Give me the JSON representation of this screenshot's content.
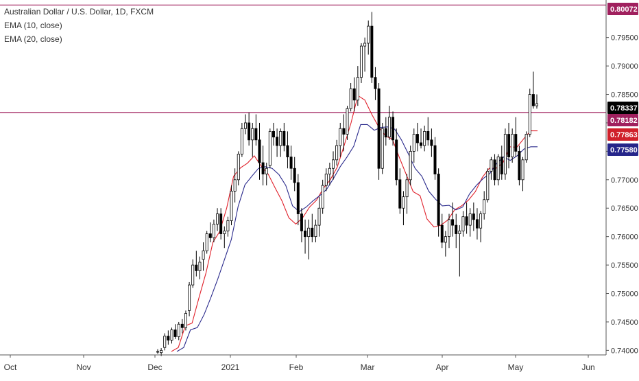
{
  "legend": {
    "title": "Australian Dollar / U.S. Dollar, 1D, FXCM",
    "ema10_label": "EMA (10, close)",
    "ema20_label": "EMA (20, close)"
  },
  "colors": {
    "background": "#ffffff",
    "candle": "#000000",
    "ema10": "#e0202a",
    "ema20": "#2a2a8c",
    "hline": "#a0205e",
    "axis": "#555555"
  },
  "price_labels": [
    {
      "text": "0.80072",
      "bg": "#a0205e",
      "fg": "#ffffff"
    },
    {
      "text": "0.78337",
      "bg": "#000000",
      "fg": "#ffffff"
    },
    {
      "text": "0.78182",
      "bg": "#a0205e",
      "fg": "#ffffff"
    },
    {
      "text": "0.77863",
      "bg": "#d0202a",
      "fg": "#ffffff"
    },
    {
      "text": "0.77580",
      "bg": "#25258a",
      "fg": "#ffffff"
    }
  ],
  "chart_data": {
    "type": "candlestick",
    "symbol": "Australian Dollar / U.S. Dollar, 1D, FXCM",
    "ylim": [
      0.7392,
      0.8016
    ],
    "y_ticks": [
      "0.74000",
      "0.74500",
      "0.75000",
      "0.75500",
      "0.76000",
      "0.76500",
      "0.77000",
      "0.77500",
      "0.78000",
      "0.78500",
      "0.79000",
      "0.79500"
    ],
    "x_ticks": [
      "Oct",
      "Nov",
      "Dec",
      "2021",
      "Feb",
      "Mar",
      "Apr",
      "May",
      "Jun"
    ],
    "hlines": [
      0.80072,
      0.78182
    ],
    "series": [
      {
        "name": "EMA (10, close)",
        "values": [
          [
            0.7398,
            0.7405
          ],
          [
            0.7443,
            0.7448
          ],
          [
            0.7493,
            0.7536
          ],
          [
            0.759,
            0.7609
          ],
          [
            0.765,
            0.7706
          ],
          [
            0.7721,
            0.7729
          ],
          [
            0.7742,
            0.7724
          ],
          [
            0.771,
            0.7686
          ],
          [
            0.7663,
            0.7633
          ],
          [
            0.7622,
            0.7633
          ],
          [
            0.7652,
            0.7664
          ],
          [
            0.7685,
            0.77
          ],
          [
            0.7722,
            0.776
          ],
          [
            0.78,
            0.7848
          ],
          [
            0.784,
            0.7815
          ],
          [
            0.7793,
            0.7777
          ],
          [
            0.7771,
            0.7739
          ],
          [
            0.7709,
            0.7679
          ],
          [
            0.7672,
            0.7631
          ],
          [
            0.7617,
            0.762
          ],
          [
            0.7629,
            0.7647
          ],
          [
            0.7654,
            0.7664
          ],
          [
            0.7679,
            0.7704
          ],
          [
            0.772,
            0.772
          ],
          [
            0.773,
            0.7758
          ],
          [
            0.7757,
            0.7772
          ],
          [
            0.7786,
            0.7786
          ]
        ]
      },
      {
        "name": "EMA (20, close)",
        "values": [
          [
            0.7398,
            0.7405
          ],
          [
            0.7436,
            0.744
          ],
          [
            0.7463,
            0.7493
          ],
          [
            0.7525,
            0.756
          ],
          [
            0.7595,
            0.7653
          ],
          [
            0.7691,
            0.7706
          ],
          [
            0.772,
            0.7723
          ],
          [
            0.772,
            0.7709
          ],
          [
            0.769,
            0.7654
          ],
          [
            0.7644,
            0.7652
          ],
          [
            0.7663,
            0.7672
          ],
          [
            0.7683,
            0.7702
          ],
          [
            0.7723,
            0.774
          ],
          [
            0.7759,
            0.7797
          ],
          [
            0.7797,
            0.7787
          ],
          [
            0.7792,
            0.7793
          ],
          [
            0.7789,
            0.777
          ],
          [
            0.7746,
            0.772
          ],
          [
            0.7706,
            0.768
          ],
          [
            0.7666,
            0.7654
          ],
          [
            0.7655,
            0.7647
          ],
          [
            0.7652,
            0.7675
          ],
          [
            0.769,
            0.7702
          ],
          [
            0.7711,
            0.7729
          ],
          [
            0.774,
            0.7734
          ],
          [
            0.7742,
            0.7754
          ],
          [
            0.7758,
            0.7758
          ]
        ]
      }
    ],
    "candles": [
      [
        0.7398,
        0.7402,
        0.7394,
        0.7398
      ],
      [
        0.7396,
        0.7404,
        0.739,
        0.74
      ],
      [
        0.7405,
        0.743,
        0.74,
        0.7425
      ],
      [
        0.7425,
        0.7435,
        0.741,
        0.7418
      ],
      [
        0.7418,
        0.744,
        0.7412,
        0.7436
      ],
      [
        0.7436,
        0.7446,
        0.742,
        0.7424
      ],
      [
        0.7424,
        0.745,
        0.7418,
        0.7446
      ],
      [
        0.7446,
        0.7455,
        0.743,
        0.744
      ],
      [
        0.744,
        0.747,
        0.7435,
        0.7465
      ],
      [
        0.747,
        0.752,
        0.746,
        0.7515
      ],
      [
        0.7515,
        0.756,
        0.751,
        0.755
      ],
      [
        0.755,
        0.7575,
        0.753,
        0.754
      ],
      [
        0.754,
        0.7565,
        0.7525,
        0.7555
      ],
      [
        0.756,
        0.759,
        0.754,
        0.7575
      ],
      [
        0.7575,
        0.761,
        0.757,
        0.7605
      ],
      [
        0.7605,
        0.7625,
        0.759,
        0.7598
      ],
      [
        0.7598,
        0.763,
        0.759,
        0.7622
      ],
      [
        0.7622,
        0.765,
        0.761,
        0.764
      ],
      [
        0.764,
        0.765,
        0.7595,
        0.7605
      ],
      [
        0.7605,
        0.7618,
        0.758,
        0.761
      ],
      [
        0.761,
        0.7635,
        0.76,
        0.7628
      ],
      [
        0.7628,
        0.769,
        0.762,
        0.768
      ],
      [
        0.768,
        0.772,
        0.766,
        0.77
      ],
      [
        0.77,
        0.775,
        0.769,
        0.7745
      ],
      [
        0.7745,
        0.78,
        0.774,
        0.779
      ],
      [
        0.779,
        0.7815,
        0.778,
        0.78
      ],
      [
        0.78,
        0.7818,
        0.776,
        0.777
      ],
      [
        0.777,
        0.78,
        0.774,
        0.779
      ],
      [
        0.779,
        0.7815,
        0.776,
        0.777
      ],
      [
        0.777,
        0.78,
        0.77,
        0.773
      ],
      [
        0.773,
        0.776,
        0.769,
        0.771
      ],
      [
        0.771,
        0.773,
        0.769,
        0.772
      ],
      [
        0.7725,
        0.779,
        0.772,
        0.7785
      ],
      [
        0.7785,
        0.78,
        0.776,
        0.7775
      ],
      [
        0.7775,
        0.779,
        0.774,
        0.776
      ],
      [
        0.776,
        0.779,
        0.774,
        0.7785
      ],
      [
        0.7785,
        0.78,
        0.775,
        0.776
      ],
      [
        0.776,
        0.7785,
        0.772,
        0.774
      ],
      [
        0.774,
        0.776,
        0.77,
        0.772
      ],
      [
        0.772,
        0.774,
        0.768,
        0.7695
      ],
      [
        0.7695,
        0.771,
        0.762,
        0.764
      ],
      [
        0.764,
        0.765,
        0.759,
        0.761
      ],
      [
        0.761,
        0.763,
        0.757,
        0.76
      ],
      [
        0.76,
        0.763,
        0.756,
        0.7615
      ],
      [
        0.7615,
        0.764,
        0.759,
        0.76
      ],
      [
        0.76,
        0.763,
        0.759,
        0.762
      ],
      [
        0.762,
        0.767,
        0.76,
        0.765
      ],
      [
        0.765,
        0.77,
        0.764,
        0.769
      ],
      [
        0.769,
        0.772,
        0.768,
        0.771
      ],
      [
        0.771,
        0.773,
        0.769,
        0.772
      ],
      [
        0.772,
        0.775,
        0.77,
        0.7735
      ],
      [
        0.7735,
        0.777,
        0.7725,
        0.776
      ],
      [
        0.776,
        0.78,
        0.774,
        0.779
      ],
      [
        0.779,
        0.7815,
        0.775,
        0.778
      ],
      [
        0.778,
        0.783,
        0.777,
        0.7825
      ],
      [
        0.7825,
        0.787,
        0.782,
        0.786
      ],
      [
        0.786,
        0.788,
        0.782,
        0.784
      ],
      [
        0.784,
        0.79,
        0.783,
        0.788
      ],
      [
        0.788,
        0.794,
        0.787,
        0.7935
      ],
      [
        0.7935,
        0.795,
        0.789,
        0.794
      ],
      [
        0.794,
        0.798,
        0.792,
        0.797
      ],
      [
        0.797,
        0.7995,
        0.787,
        0.788
      ],
      [
        0.788,
        0.7898,
        0.784,
        0.786
      ],
      [
        0.786,
        0.787,
        0.77,
        0.772
      ],
      [
        0.772,
        0.78,
        0.771,
        0.779
      ],
      [
        0.779,
        0.781,
        0.776,
        0.7775
      ],
      [
        0.7775,
        0.783,
        0.777,
        0.781
      ],
      [
        0.781,
        0.782,
        0.776,
        0.777
      ],
      [
        0.777,
        0.779,
        0.769,
        0.77
      ],
      [
        0.77,
        0.772,
        0.764,
        0.765
      ],
      [
        0.765,
        0.768,
        0.762,
        0.767
      ],
      [
        0.767,
        0.771,
        0.764,
        0.77
      ],
      [
        0.77,
        0.776,
        0.769,
        0.775
      ],
      [
        0.775,
        0.779,
        0.773,
        0.778
      ],
      [
        0.778,
        0.78,
        0.775,
        0.7765
      ],
      [
        0.7765,
        0.779,
        0.7755,
        0.776
      ],
      [
        0.776,
        0.7795,
        0.775,
        0.7785
      ],
      [
        0.7785,
        0.781,
        0.776,
        0.777
      ],
      [
        0.777,
        0.779,
        0.774,
        0.776
      ],
      [
        0.776,
        0.7775,
        0.77,
        0.771
      ],
      [
        0.771,
        0.772,
        0.76,
        0.762
      ],
      [
        0.762,
        0.764,
        0.758,
        0.759
      ],
      [
        0.759,
        0.761,
        0.7565,
        0.76
      ],
      [
        0.76,
        0.764,
        0.758,
        0.763
      ],
      [
        0.763,
        0.766,
        0.76,
        0.762
      ],
      [
        0.762,
        0.764,
        0.758,
        0.7605
      ],
      [
        0.7605,
        0.762,
        0.753,
        0.761
      ],
      [
        0.761,
        0.7645,
        0.76,
        0.7635
      ],
      [
        0.7635,
        0.766,
        0.7605,
        0.762
      ],
      [
        0.762,
        0.765,
        0.76,
        0.764
      ],
      [
        0.764,
        0.766,
        0.761,
        0.763
      ],
      [
        0.763,
        0.765,
        0.7595,
        0.7615
      ],
      [
        0.7615,
        0.7645,
        0.759,
        0.764
      ],
      [
        0.764,
        0.768,
        0.763,
        0.7665
      ],
      [
        0.7665,
        0.772,
        0.766,
        0.7715
      ],
      [
        0.7715,
        0.774,
        0.77,
        0.7735
      ],
      [
        0.7735,
        0.7745,
        0.769,
        0.77
      ],
      [
        0.77,
        0.7745,
        0.769,
        0.774
      ],
      [
        0.774,
        0.776,
        0.77,
        0.771
      ],
      [
        0.771,
        0.779,
        0.77,
        0.778
      ],
      [
        0.778,
        0.78,
        0.772,
        0.774
      ],
      [
        0.774,
        0.779,
        0.773,
        0.778
      ],
      [
        0.778,
        0.781,
        0.774,
        0.775
      ],
      [
        0.775,
        0.776,
        0.769,
        0.77
      ],
      [
        0.77,
        0.774,
        0.768,
        0.7735
      ],
      [
        0.7735,
        0.7785,
        0.773,
        0.778
      ],
      [
        0.778,
        0.786,
        0.7775,
        0.785
      ],
      [
        0.785,
        0.789,
        0.7825,
        0.783
      ],
      [
        0.783,
        0.785,
        0.7825,
        0.78337
      ]
    ]
  }
}
